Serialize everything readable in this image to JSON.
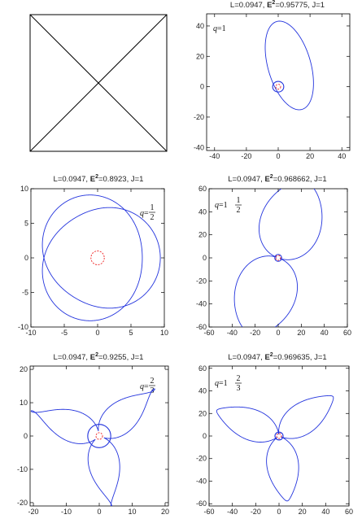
{
  "chart_data": [
    {
      "panel": "top-left",
      "type": "diagram",
      "title": "",
      "description_marks": "square with both diagonals (crossed lines)"
    },
    {
      "panel": "top-right",
      "type": "line",
      "title_prefix": "L=0.0947, ",
      "title_e": "E",
      "title_sup": "2",
      "title_suffix": "=0.95775, J=1",
      "q_label": "q=1",
      "q_main": "1",
      "xlim": [
        -45,
        45
      ],
      "ylim": [
        -42,
        48
      ],
      "xticks": [
        -40,
        -20,
        0,
        20,
        40
      ],
      "yticks": [
        -40,
        -20,
        0,
        20,
        40
      ],
      "orbit": {
        "kind": "ellipse",
        "rx": 13.5,
        "ry": 30,
        "cx": 7,
        "cy": 14,
        "tilt_deg": 15
      },
      "inner_circle_radius": 3.5,
      "horizon_radius": 1
    },
    {
      "panel": "middle-left",
      "type": "line",
      "title_prefix": "L=0.0947, ",
      "title_e": "E",
      "title_sup": "2",
      "title_suffix": "=0.8923, J=1",
      "q_prefix": "q=",
      "q_num": "1",
      "q_den": "2",
      "xlim": [
        -10,
        10
      ],
      "ylim": [
        -10,
        10
      ],
      "xticks": [
        -10,
        -5,
        0,
        5,
        10
      ],
      "yticks": [
        -10,
        -5,
        0,
        5,
        10
      ],
      "orbit": {
        "kind": "rosette",
        "r_min": 6.7,
        "r_max": 9.4,
        "petals": 3,
        "freq": 2,
        "rotations": 2
      },
      "horizon_radius": 1
    },
    {
      "panel": "middle-right",
      "type": "line",
      "title_prefix": "L=0.0947, ",
      "title_e": "E",
      "title_sup": "2",
      "title_suffix": "=0.968662, J=1",
      "q_prefix": "q=",
      "q_whole": "1",
      "q_num": "1",
      "q_den": "2",
      "xlim": [
        -60,
        60
      ],
      "ylim": [
        -60,
        60
      ],
      "xticks": [
        -60,
        -40,
        -20,
        0,
        20,
        40,
        60
      ],
      "yticks": [
        -60,
        -40,
        -20,
        0,
        20,
        40,
        60
      ],
      "orbit": {
        "kind": "lobes",
        "lobes": 2,
        "length": 70,
        "width": 19,
        "base_angle_deg": -20
      },
      "inner_circle_radius": 3,
      "horizon_radius": 1
    },
    {
      "panel": "bottom-left",
      "type": "line",
      "title_prefix": "L=0.0947, ",
      "title_e": "E",
      "title_sup": "2",
      "title_suffix": "=0.9255, J=1",
      "q_prefix": "q=",
      "q_num": "2",
      "q_den": "3",
      "xlim": [
        -21,
        21
      ],
      "ylim": [
        -21,
        21
      ],
      "xticks": [
        -20,
        -10,
        0,
        10,
        20
      ],
      "yticks": [
        -20,
        -10,
        0,
        10,
        20
      ],
      "orbit": {
        "kind": "lobes",
        "lobes": 3,
        "length": 22,
        "width": 8,
        "base_angle_deg": 100
      },
      "inner_circle_radius": 3.5,
      "horizon_radius": 1
    },
    {
      "panel": "bottom-right",
      "type": "line",
      "title_prefix": "L=0.0947, ",
      "title_e": "E",
      "title_sup": "2",
      "title_suffix": "=0.969635, J=1",
      "q_prefix": "q=",
      "q_whole": "1",
      "q_num": "2",
      "q_den": "3",
      "xlim": [
        -60,
        60
      ],
      "ylim": [
        -62,
        62
      ],
      "xticks": [
        -60,
        -40,
        -20,
        0,
        20,
        40,
        60
      ],
      "yticks": [
        -60,
        -40,
        -20,
        0,
        20,
        40,
        60
      ],
      "orbit": {
        "kind": "lobes",
        "lobes": 3,
        "length": 58,
        "width": 15,
        "base_angle_deg": 97
      },
      "inner_circle_radius": 3.5,
      "horizon_radius": 1
    }
  ],
  "colors": {
    "orbit": "#2233dd",
    "horizon": "#ee2222",
    "frame": "#000000"
  }
}
